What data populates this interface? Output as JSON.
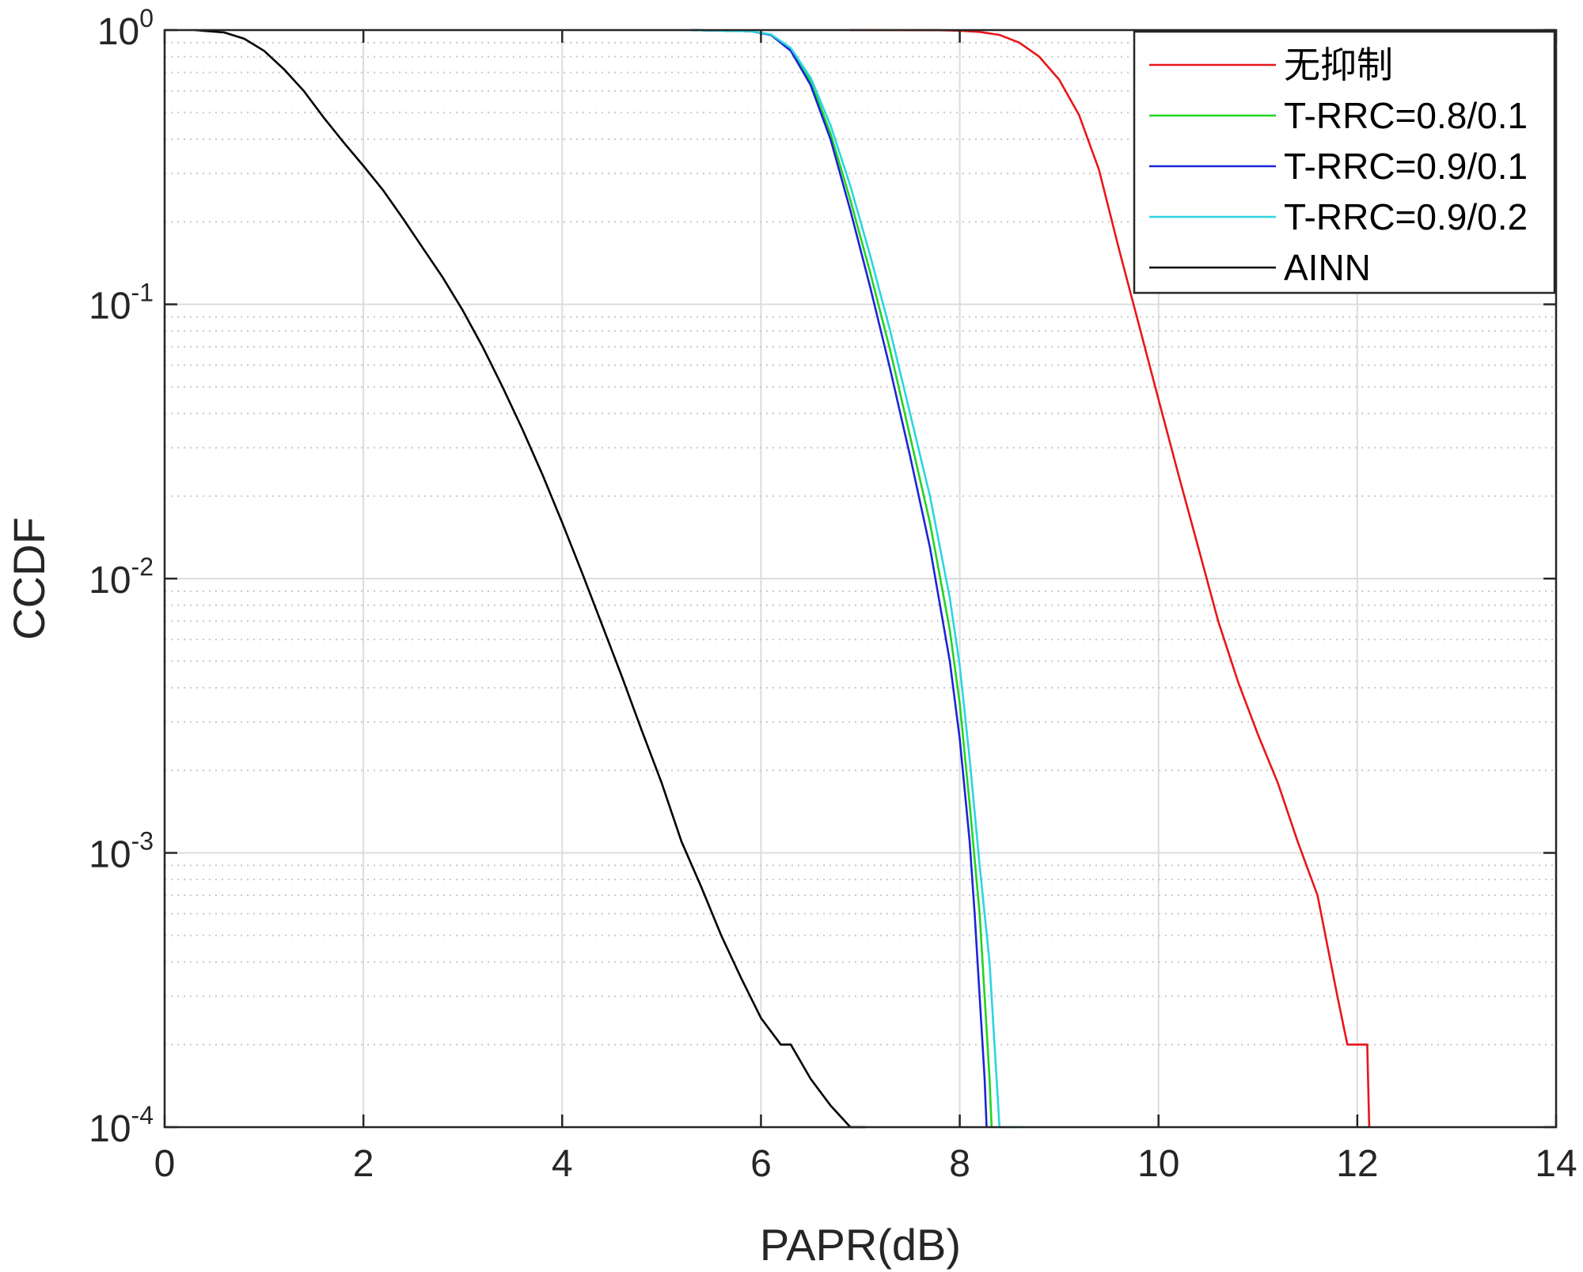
{
  "chart_data": {
    "type": "line",
    "xlabel": "PAPR(dB)",
    "ylabel": "CCDF",
    "xlim": [
      0,
      14
    ],
    "ylim": [
      0.0001,
      1
    ],
    "yscale": "log",
    "grid": true,
    "legend_position": "top-right",
    "x_ticks": [
      {
        "value": 0,
        "label": "0"
      },
      {
        "value": 2,
        "label": "2"
      },
      {
        "value": 4,
        "label": "4"
      },
      {
        "value": 6,
        "label": "6"
      },
      {
        "value": 8,
        "label": "8"
      },
      {
        "value": 10,
        "label": "10"
      },
      {
        "value": 12,
        "label": "12"
      },
      {
        "value": 14,
        "label": "14"
      }
    ],
    "y_ticks": [
      {
        "value": 1,
        "base": "10",
        "exp": "0"
      },
      {
        "value": 0.1,
        "base": "10",
        "exp": "-1"
      },
      {
        "value": 0.01,
        "base": "10",
        "exp": "-2"
      },
      {
        "value": 0.001,
        "base": "10",
        "exp": "-3"
      },
      {
        "value": 0.0001,
        "base": "10",
        "exp": "-4"
      }
    ],
    "series": [
      {
        "name": "无抑制",
        "color": "#e8161b",
        "points": [
          [
            6.9,
            1.0
          ],
          [
            7.8,
            0.999
          ],
          [
            8.0,
            0.995
          ],
          [
            8.2,
            0.985
          ],
          [
            8.4,
            0.96
          ],
          [
            8.6,
            0.9
          ],
          [
            8.8,
            0.8
          ],
          [
            9.0,
            0.66
          ],
          [
            9.2,
            0.49
          ],
          [
            9.4,
            0.31
          ],
          [
            9.6,
            0.16
          ],
          [
            9.8,
            0.085
          ],
          [
            10.0,
            0.045
          ],
          [
            10.2,
            0.024
          ],
          [
            10.4,
            0.013
          ],
          [
            10.6,
            0.007
          ],
          [
            10.8,
            0.0042
          ],
          [
            11.0,
            0.0027
          ],
          [
            11.2,
            0.0018
          ],
          [
            11.4,
            0.0011
          ],
          [
            11.6,
            0.0007
          ],
          [
            11.8,
            0.0003
          ],
          [
            11.9,
            0.0002
          ],
          [
            12.1,
            0.0002
          ],
          [
            12.12,
            0.0001
          ]
        ]
      },
      {
        "name": "T-RRC=0.8/0.1",
        "color": "#22d422",
        "points": [
          [
            5.3,
            1.0
          ],
          [
            5.9,
            0.99
          ],
          [
            6.1,
            0.96
          ],
          [
            6.3,
            0.85
          ],
          [
            6.5,
            0.65
          ],
          [
            6.7,
            0.42
          ],
          [
            6.9,
            0.24
          ],
          [
            7.1,
            0.13
          ],
          [
            7.3,
            0.068
          ],
          [
            7.5,
            0.033
          ],
          [
            7.7,
            0.016
          ],
          [
            7.9,
            0.0065
          ],
          [
            8.0,
            0.0035
          ],
          [
            8.1,
            0.0015
          ],
          [
            8.2,
            0.0006
          ],
          [
            8.25,
            0.0003
          ],
          [
            8.3,
            0.00015
          ],
          [
            8.32,
            0.0001
          ]
        ]
      },
      {
        "name": "T-RRC=0.9/0.1",
        "color": "#1c24d8",
        "points": [
          [
            5.3,
            1.0
          ],
          [
            5.9,
            0.99
          ],
          [
            6.1,
            0.96
          ],
          [
            6.3,
            0.84
          ],
          [
            6.5,
            0.63
          ],
          [
            6.7,
            0.4
          ],
          [
            6.9,
            0.22
          ],
          [
            7.1,
            0.115
          ],
          [
            7.3,
            0.058
          ],
          [
            7.5,
            0.028
          ],
          [
            7.7,
            0.013
          ],
          [
            7.9,
            0.005
          ],
          [
            8.0,
            0.0026
          ],
          [
            8.1,
            0.0011
          ],
          [
            8.15,
            0.0006
          ],
          [
            8.2,
            0.0003
          ],
          [
            8.25,
            0.00015
          ],
          [
            8.27,
            0.0001
          ]
        ]
      },
      {
        "name": "T-RRC=0.9/0.2",
        "color": "#2ad6e0",
        "points": [
          [
            5.3,
            1.0
          ],
          [
            5.9,
            0.99
          ],
          [
            6.1,
            0.965
          ],
          [
            6.3,
            0.86
          ],
          [
            6.5,
            0.67
          ],
          [
            6.7,
            0.45
          ],
          [
            6.9,
            0.27
          ],
          [
            7.1,
            0.15
          ],
          [
            7.3,
            0.08
          ],
          [
            7.5,
            0.04
          ],
          [
            7.7,
            0.02
          ],
          [
            7.9,
            0.0085
          ],
          [
            8.0,
            0.0048
          ],
          [
            8.1,
            0.0022
          ],
          [
            8.2,
            0.0009
          ],
          [
            8.3,
            0.0004
          ],
          [
            8.35,
            0.0002
          ],
          [
            8.4,
            0.0001
          ],
          [
            8.6,
            0.0001
          ]
        ]
      },
      {
        "name": "AINN",
        "color": "#000000",
        "points": [
          [
            0.3,
            1.0
          ],
          [
            0.6,
            0.98
          ],
          [
            0.8,
            0.93
          ],
          [
            1.0,
            0.84
          ],
          [
            1.2,
            0.72
          ],
          [
            1.4,
            0.6
          ],
          [
            1.6,
            0.48
          ],
          [
            1.8,
            0.39
          ],
          [
            2.0,
            0.32
          ],
          [
            2.2,
            0.26
          ],
          [
            2.4,
            0.205
          ],
          [
            2.6,
            0.16
          ],
          [
            2.8,
            0.125
          ],
          [
            3.0,
            0.095
          ],
          [
            3.2,
            0.07
          ],
          [
            3.4,
            0.05
          ],
          [
            3.6,
            0.035
          ],
          [
            3.8,
            0.024
          ],
          [
            4.0,
            0.016
          ],
          [
            4.2,
            0.0105
          ],
          [
            4.4,
            0.0068
          ],
          [
            4.6,
            0.0044
          ],
          [
            4.8,
            0.0028
          ],
          [
            5.0,
            0.0018
          ],
          [
            5.2,
            0.0011
          ],
          [
            5.4,
            0.00075
          ],
          [
            5.6,
            0.0005
          ],
          [
            5.8,
            0.00035
          ],
          [
            6.0,
            0.00025
          ],
          [
            6.2,
            0.0002
          ],
          [
            6.3,
            0.0002
          ],
          [
            6.5,
            0.00015
          ],
          [
            6.7,
            0.00012
          ],
          [
            6.9,
            0.0001
          ],
          [
            7.05,
            0.0001
          ]
        ]
      }
    ]
  }
}
